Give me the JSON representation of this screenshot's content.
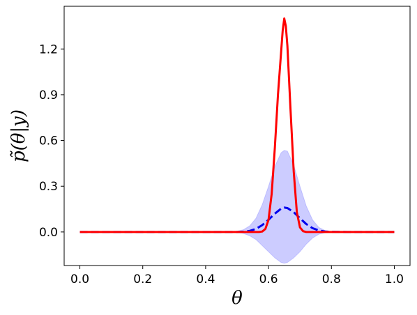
{
  "chart_data": {
    "type": "line",
    "title": "",
    "xlabel": "θ",
    "ylabel": "p̃(θ|y)",
    "xlim": [
      -0.05,
      1.05
    ],
    "ylim": [
      -0.22,
      1.48
    ],
    "xticks": [
      0.0,
      0.2,
      0.4,
      0.6,
      0.8,
      1.0
    ],
    "xtick_labels": [
      "0.0",
      "0.2",
      "0.4",
      "0.6",
      "0.8",
      "1.0"
    ],
    "yticks": [
      0.0,
      0.3,
      0.6,
      0.9,
      1.2
    ],
    "ytick_labels": [
      "0.0",
      "0.3",
      "0.6",
      "0.9",
      "1.2"
    ],
    "grid": false,
    "legend": "none",
    "series": [
      {
        "style": "dashed",
        "color": "#0000ee",
        "x": [
          0.0,
          0.1,
          0.2,
          0.3,
          0.4,
          0.45,
          0.5,
          0.52,
          0.54,
          0.56,
          0.58,
          0.6,
          0.62,
          0.64,
          0.65,
          0.66,
          0.68,
          0.7,
          0.72,
          0.74,
          0.76,
          0.78,
          0.8,
          0.85,
          0.9,
          1.0
        ],
        "y": [
          0.0,
          0.0,
          0.0,
          0.0,
          0.0,
          0.0,
          0.0,
          0.002,
          0.007,
          0.02,
          0.045,
          0.08,
          0.12,
          0.153,
          0.16,
          0.157,
          0.13,
          0.09,
          0.052,
          0.025,
          0.01,
          0.003,
          0.001,
          0.0,
          0.0,
          0.0
        ]
      },
      {
        "style": "solid",
        "color": "#ff0000",
        "x": [
          0.0,
          0.2,
          0.4,
          0.5,
          0.55,
          0.57,
          0.58,
          0.59,
          0.6,
          0.61,
          0.62,
          0.63,
          0.64,
          0.645,
          0.65,
          0.655,
          0.66,
          0.67,
          0.68,
          0.69,
          0.7,
          0.71,
          0.72,
          0.74,
          0.8,
          1.0
        ],
        "y": [
          0.0,
          0.0,
          0.0,
          0.0,
          0.0,
          0.0,
          0.003,
          0.02,
          0.08,
          0.25,
          0.55,
          0.9,
          1.18,
          1.32,
          1.4,
          1.35,
          1.22,
          0.8,
          0.4,
          0.13,
          0.03,
          0.005,
          0.0,
          0.0,
          0.0,
          0.0
        ]
      }
    ],
    "band": {
      "color": "#0000ff",
      "opacity": 0.2,
      "x": [
        0.0,
        0.1,
        0.2,
        0.3,
        0.4,
        0.45,
        0.5,
        0.52,
        0.54,
        0.56,
        0.58,
        0.6,
        0.62,
        0.64,
        0.65,
        0.66,
        0.68,
        0.7,
        0.72,
        0.74,
        0.76,
        0.78,
        0.8,
        0.85,
        0.9,
        1.0
      ],
      "upper": [
        0.0,
        0.0,
        0.0,
        0.0,
        0.0,
        0.0,
        0.005,
        0.015,
        0.04,
        0.09,
        0.18,
        0.3,
        0.43,
        0.52,
        0.535,
        0.53,
        0.44,
        0.3,
        0.17,
        0.08,
        0.03,
        0.01,
        0.003,
        0.0,
        0.0,
        0.0
      ],
      "lower": [
        0.0,
        0.0,
        0.0,
        0.0,
        0.0,
        0.0,
        -0.003,
        -0.01,
        -0.025,
        -0.05,
        -0.09,
        -0.13,
        -0.17,
        -0.2,
        -0.205,
        -0.2,
        -0.17,
        -0.13,
        -0.08,
        -0.04,
        -0.015,
        -0.005,
        -0.001,
        0.0,
        0.0,
        0.0
      ]
    }
  }
}
